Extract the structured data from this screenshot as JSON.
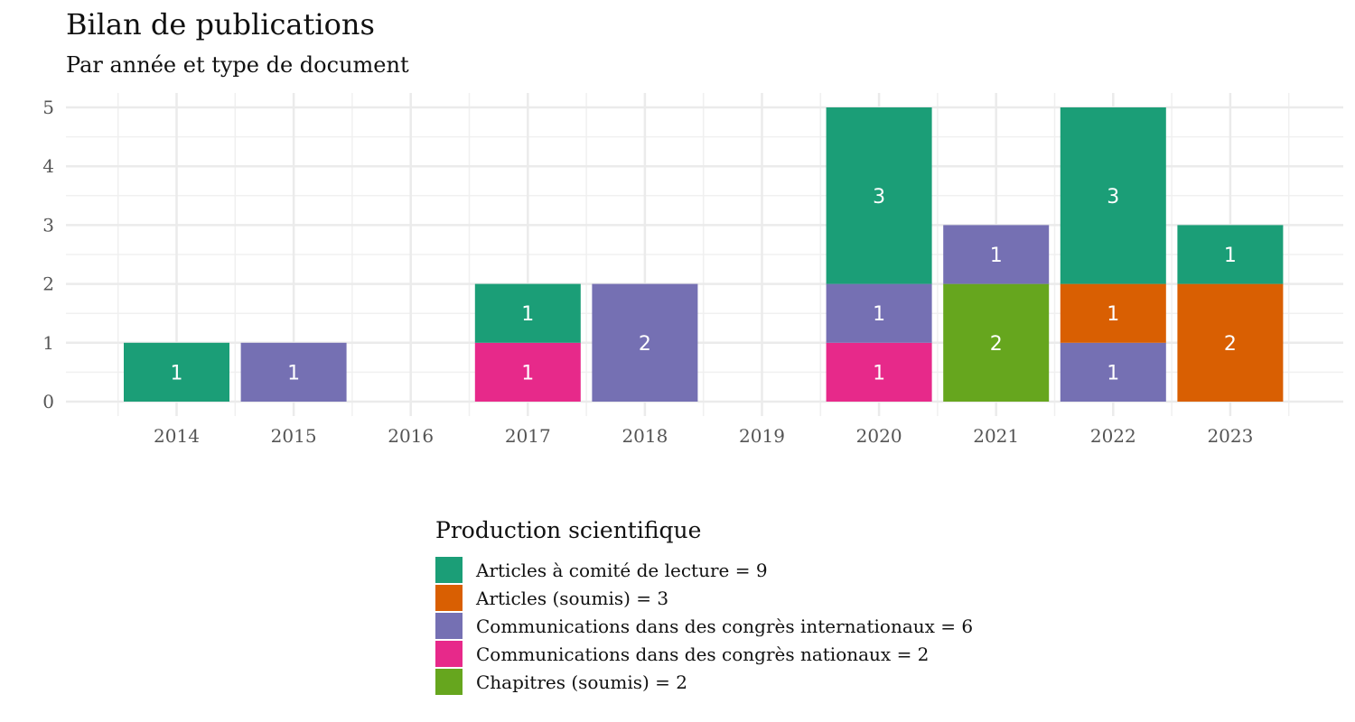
{
  "chart_data": {
    "type": "bar",
    "stacked": true,
    "title": "Bilan de publications",
    "subtitle": "Par année et type de document",
    "categories": [
      "2014",
      "2015",
      "2016",
      "2017",
      "2018",
      "2019",
      "2020",
      "2021",
      "2022",
      "2023"
    ],
    "ylim": [
      0,
      5
    ],
    "yticks": [
      "0",
      "1",
      "2",
      "3",
      "4",
      "5"
    ],
    "grid": true,
    "legend": {
      "title": "Production scientifique",
      "placement": "bottom",
      "entries": [
        "Articles à comité de lecture = 9",
        "Articles (soumis) = 3",
        "Communications dans des congrès internationaux = 6",
        "Communications dans des congrès nationaux  = 2",
        "Chapitres (soumis) = 2"
      ]
    },
    "series": [
      {
        "color": "#1b9e77",
        "values": [
          1,
          0,
          0,
          1,
          0,
          0,
          3,
          0,
          3,
          1
        ]
      },
      {
        "color": "#d95f02",
        "values": [
          0,
          0,
          0,
          0,
          0,
          0,
          0,
          0,
          1,
          2
        ]
      },
      {
        "color": "#7570b3",
        "values": [
          0,
          1,
          0,
          0,
          2,
          0,
          1,
          1,
          1,
          0
        ]
      },
      {
        "color": "#e7298a",
        "values": [
          0,
          0,
          0,
          1,
          0,
          0,
          1,
          0,
          0,
          0
        ]
      },
      {
        "color": "#66a61e",
        "values": [
          0,
          0,
          0,
          0,
          0,
          0,
          0,
          2,
          0,
          0
        ]
      }
    ],
    "stack_order_bottom_to_top": [
      4,
      3,
      2,
      1,
      0
    ]
  }
}
